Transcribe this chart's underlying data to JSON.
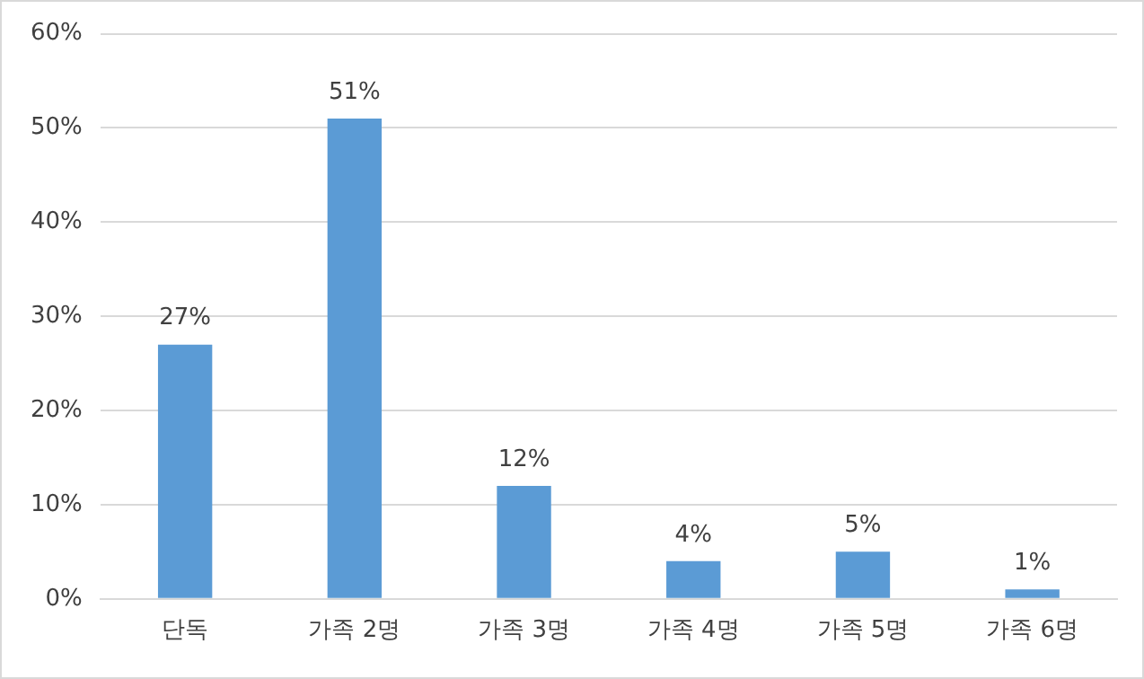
{
  "chart_data": {
    "type": "bar",
    "categories": [
      "단독",
      "가족 2명",
      "가족 3명",
      "가족 4명",
      "가족 5명",
      "가족 6명"
    ],
    "values": [
      27,
      51,
      12,
      4,
      5,
      1
    ],
    "value_labels": [
      "27%",
      "51%",
      "12%",
      "4%",
      "5%",
      "1%"
    ],
    "color": "#5b9bd5",
    "ylim": [
      0,
      60
    ],
    "yticks": [
      {
        "value": 0,
        "label": "0%"
      },
      {
        "value": 10,
        "label": "10%"
      },
      {
        "value": 20,
        "label": "20%"
      },
      {
        "value": 30,
        "label": "30%"
      },
      {
        "value": 40,
        "label": "40%"
      },
      {
        "value": 50,
        "label": "50%"
      },
      {
        "value": 60,
        "label": "60%"
      }
    ],
    "grid": "y"
  }
}
